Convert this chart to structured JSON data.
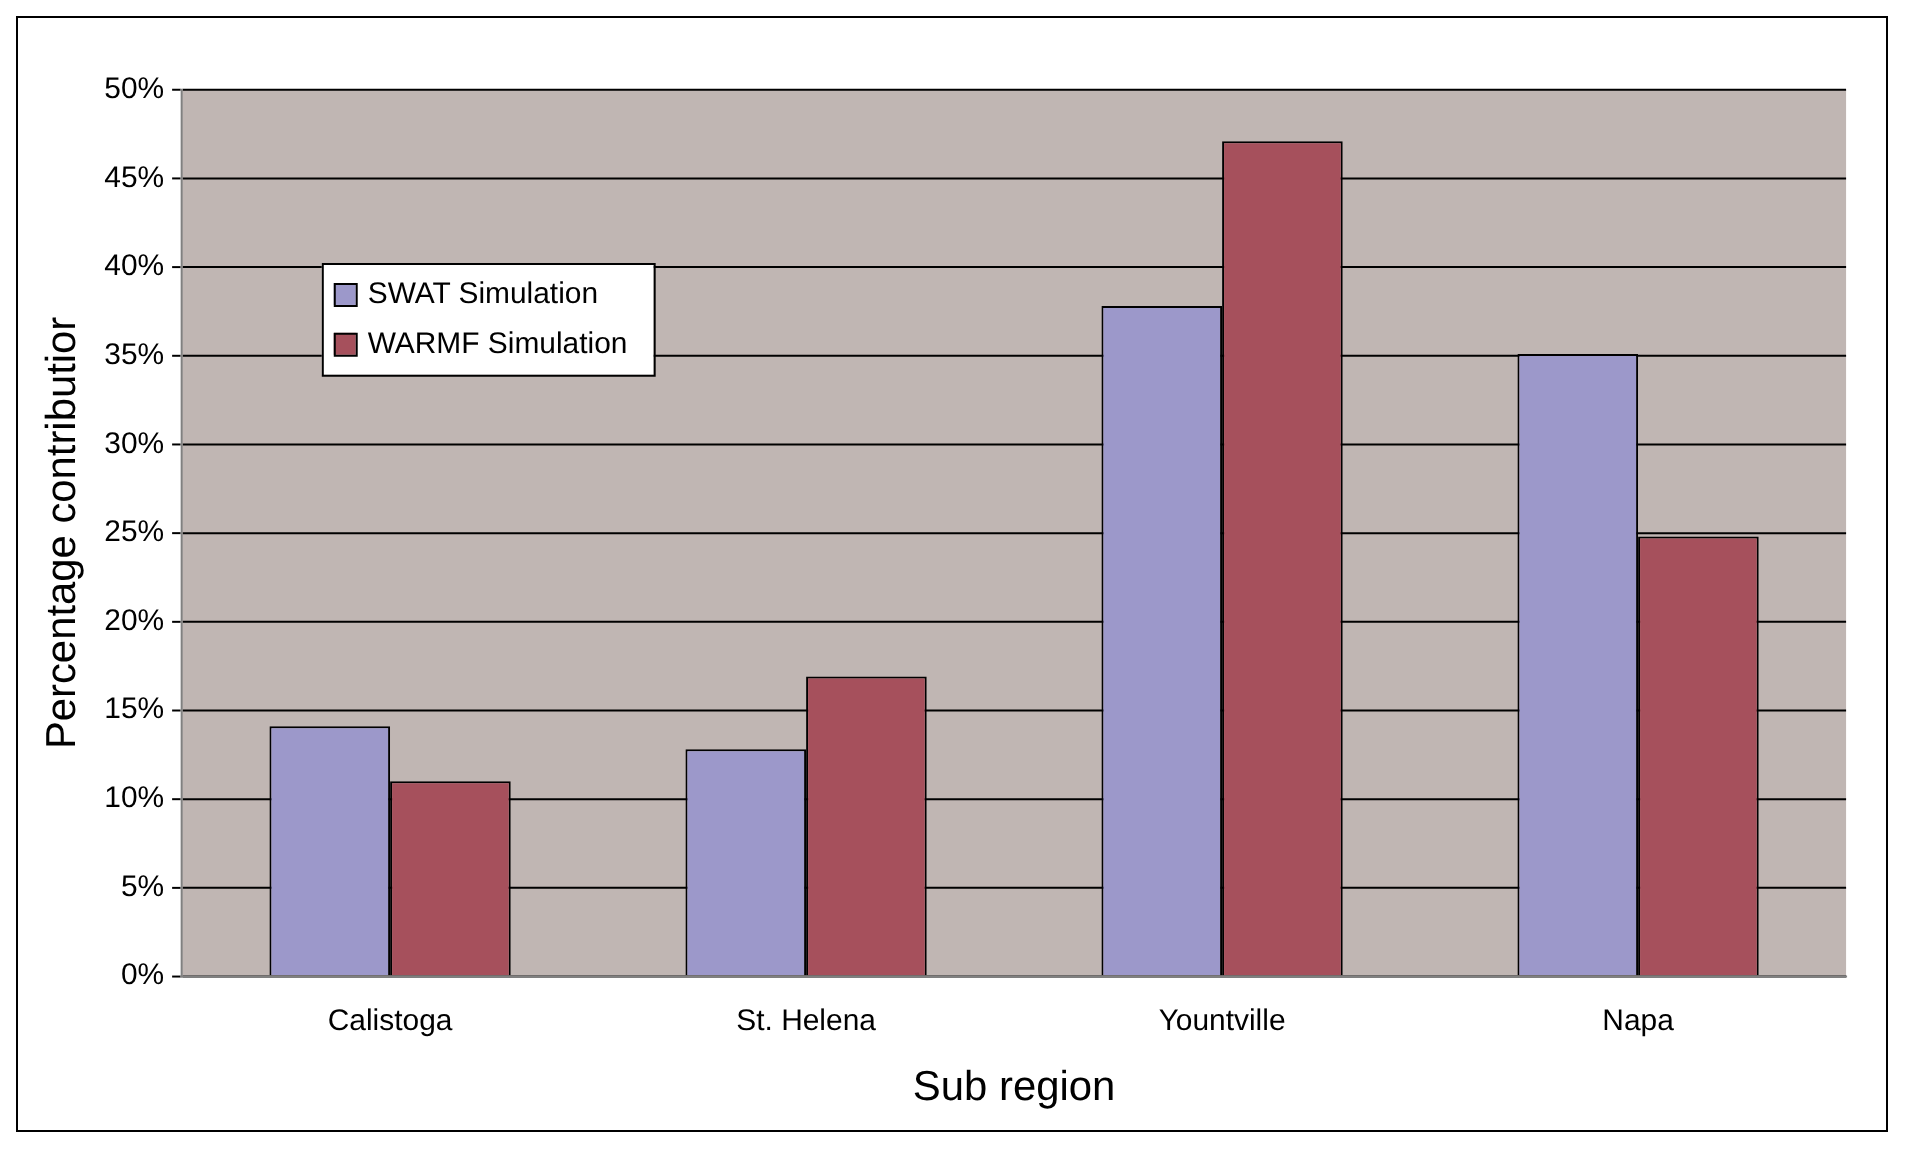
{
  "chart_data": {
    "type": "bar",
    "xlabel": "Sub region",
    "ylabel": "Percentage contributior",
    "categories": [
      "Calistoga",
      "St. Helena",
      "Yountville",
      "Napa"
    ],
    "series": [
      {
        "name": "SWAT Simulation",
        "color": "#9c98ca",
        "values": [
          14.1,
          12.8,
          37.8,
          35.1
        ]
      },
      {
        "name": "WARMF Simulation",
        "color": "#a6505c",
        "values": [
          11.0,
          16.9,
          47.1,
          24.8
        ]
      }
    ],
    "ylim": [
      0,
      50
    ],
    "yticks": [
      {
        "value": 0,
        "label": "0%"
      },
      {
        "value": 5,
        "label": "5%"
      },
      {
        "value": 10,
        "label": "10%"
      },
      {
        "value": 15,
        "label": "15%"
      },
      {
        "value": 20,
        "label": "20%"
      },
      {
        "value": 25,
        "label": "25%"
      },
      {
        "value": 30,
        "label": "30%"
      },
      {
        "value": 35,
        "label": "35%"
      },
      {
        "value": 40,
        "label": "40%"
      },
      {
        "value": 45,
        "label": "45%"
      },
      {
        "value": 50,
        "label": "50%"
      }
    ],
    "grid": "y",
    "legend": "top left"
  }
}
